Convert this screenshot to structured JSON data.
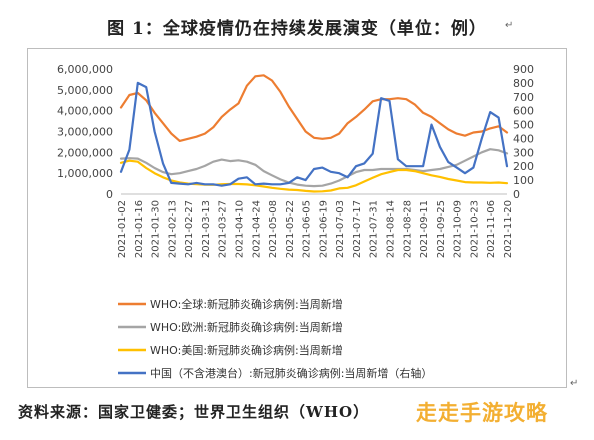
{
  "figure": {
    "title": "图 1：全球疫情仍在持续发展演变（单位：例）",
    "source": "资料来源：国家卫健委；世界卫生组织（WHO）",
    "watermark": "走走手游攻略",
    "return_mark": "↵"
  },
  "chart_data": {
    "type": "line",
    "x": [
      "2021-01-02",
      "2021-01-09",
      "2021-01-16",
      "2021-01-23",
      "2021-01-30",
      "2021-02-06",
      "2021-02-13",
      "2021-02-20",
      "2021-02-27",
      "2021-03-06",
      "2021-03-13",
      "2021-03-20",
      "2021-03-27",
      "2021-04-03",
      "2021-04-10",
      "2021-04-17",
      "2021-04-24",
      "2021-05-01",
      "2021-05-08",
      "2021-05-15",
      "2021-05-22",
      "2021-05-29",
      "2021-06-05",
      "2021-06-12",
      "2021-06-19",
      "2021-06-26",
      "2021-07-03",
      "2021-07-10",
      "2021-07-17",
      "2021-07-24",
      "2021-07-31",
      "2021-08-07",
      "2021-08-14",
      "2021-08-21",
      "2021-08-28",
      "2021-09-04",
      "2021-09-11",
      "2021-09-18",
      "2021-09-25",
      "2021-10-02",
      "2021-10-09",
      "2021-10-16",
      "2021-10-23",
      "2021-10-30",
      "2021-11-06",
      "2021-11-13",
      "2021-11-20"
    ],
    "x_tick_labels": [
      "2021-01-02",
      "2021-01-16",
      "2021-01-30",
      "2021-02-13",
      "2021-02-27",
      "2021-03-13",
      "2021-03-27",
      "2021-04-10",
      "2021-04-24",
      "2021-05-08",
      "2021-05-22",
      "2021-06-05",
      "2021-06-19",
      "2021-07-03",
      "2021-07-17",
      "2021-07-31",
      "2021-08-14",
      "2021-08-28",
      "2021-09-11",
      "2021-09-25",
      "2021-10-09",
      "2021-10-23",
      "2021-11-06",
      "2021-11-20"
    ],
    "y_left": {
      "min": 0,
      "max": 6000000,
      "ticks": [
        "0",
        "1,000,000",
        "2,000,000",
        "3,000,000",
        "4,000,000",
        "5,000,000",
        "6,000,000"
      ]
    },
    "y_right": {
      "min": 0,
      "max": 900,
      "ticks": [
        "0",
        "100",
        "200",
        "300",
        "400",
        "500",
        "600",
        "700",
        "800",
        "900"
      ]
    },
    "grid": false,
    "legend_position": "bottom",
    "series": [
      {
        "name": "WHO:全球:新冠肺炎确诊病例:当周新增",
        "axis": "left",
        "color": "#ED7D31",
        "values": [
          4150000,
          4750000,
          4850000,
          4500000,
          3900000,
          3400000,
          2900000,
          2550000,
          2650000,
          2750000,
          2900000,
          3200000,
          3700000,
          4050000,
          4350000,
          5200000,
          5650000,
          5700000,
          5450000,
          4900000,
          4200000,
          3600000,
          3000000,
          2700000,
          2650000,
          2700000,
          2900000,
          3400000,
          3700000,
          4050000,
          4450000,
          4550000,
          4550000,
          4600000,
          4550000,
          4300000,
          3900000,
          3700000,
          3400000,
          3100000,
          2900000,
          2800000,
          2950000,
          3000000,
          3150000,
          3250000,
          2950000
        ]
      },
      {
        "name": "WHO:欧洲:新冠肺炎确诊病例:当周新增",
        "axis": "left",
        "color": "#A5A5A5",
        "values": [
          1700000,
          1720000,
          1700000,
          1500000,
          1250000,
          1050000,
          950000,
          1000000,
          1100000,
          1200000,
          1350000,
          1550000,
          1650000,
          1580000,
          1620000,
          1550000,
          1400000,
          1100000,
          900000,
          700000,
          550000,
          450000,
          400000,
          380000,
          400000,
          500000,
          650000,
          850000,
          1050000,
          1150000,
          1150000,
          1200000,
          1200000,
          1200000,
          1200000,
          1150000,
          1100000,
          1150000,
          1200000,
          1300000,
          1400000,
          1600000,
          1800000,
          2000000,
          2150000,
          2100000,
          1950000
        ]
      },
      {
        "name": "WHO:美国:新冠肺炎确诊病例:当周新增",
        "axis": "left",
        "color": "#FFC000",
        "values": [
          1500000,
          1600000,
          1550000,
          1250000,
          1000000,
          800000,
          650000,
          550000,
          500000,
          470000,
          450000,
          440000,
          470000,
          480000,
          480000,
          460000,
          420000,
          360000,
          300000,
          250000,
          210000,
          190000,
          150000,
          120000,
          130000,
          170000,
          270000,
          300000,
          420000,
          600000,
          780000,
          950000,
          1050000,
          1150000,
          1150000,
          1100000,
          1000000,
          900000,
          820000,
          720000,
          650000,
          570000,
          550000,
          550000,
          540000,
          550000,
          520000
        ]
      },
      {
        "name": "中国（不含港澳台）:新冠肺炎确诊病例:当周新增（右轴）",
        "axis": "right",
        "color": "#4472C4",
        "values": [
          160,
          320,
          800,
          770,
          450,
          220,
          80,
          75,
          70,
          80,
          70,
          70,
          60,
          70,
          110,
          120,
          70,
          75,
          70,
          70,
          80,
          120,
          100,
          180,
          190,
          160,
          150,
          120,
          200,
          220,
          290,
          690,
          670,
          250,
          200,
          200,
          200,
          500,
          340,
          230,
          190,
          150,
          190,
          400,
          590,
          550,
          200
        ]
      }
    ]
  }
}
